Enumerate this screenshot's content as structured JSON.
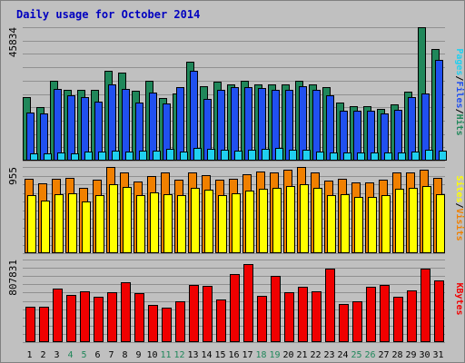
{
  "chart_data": {
    "type": "bar",
    "title": "Daily usage for October 2014",
    "categories": [
      "1",
      "2",
      "3",
      "4",
      "5",
      "6",
      "7",
      "8",
      "9",
      "10",
      "11",
      "12",
      "13",
      "14",
      "15",
      "16",
      "17",
      "18",
      "19",
      "20",
      "21",
      "22",
      "23",
      "24",
      "25",
      "26",
      "27",
      "28",
      "29",
      "30",
      "31"
    ],
    "weekend_days": [
      "4",
      "5",
      "11",
      "12",
      "18",
      "19",
      "25",
      "26"
    ],
    "grid": true,
    "panels": [
      {
        "ymax_label": "45834",
        "ylim": [
          0,
          45834
        ],
        "ylabel": [
          "Pages",
          "/",
          "Files",
          "/",
          "Hits"
        ],
        "series": [
          {
            "name": "Hits",
            "color": "#20875a",
            "values": [
              21800,
              18400,
              27400,
              24300,
              24200,
              24300,
              30800,
              30100,
              24000,
              27300,
              21400,
              23200,
              34100,
              25500,
              27000,
              26300,
              27300,
              26200,
              26200,
              26100,
              27400,
              26200,
              25300,
              20000,
              18600,
              18700,
              17800,
              19300,
              23600,
              45834,
              38200
            ]
          },
          {
            "name": "Files",
            "color": "#2050f0",
            "values": [
              16600,
              16200,
              24600,
              22600,
              21700,
              20300,
              26300,
              24600,
              20100,
              23500,
              19500,
              25300,
              30900,
              21200,
              24300,
              25300,
              25300,
              25000,
              24400,
              24400,
              25500,
              24200,
              22400,
              17300,
              17000,
              17100,
              16300,
              17500,
              21800,
              23000,
              34500
            ]
          },
          {
            "name": "Pages",
            "color": "#20d0f0",
            "values": [
              2500,
              2600,
              2800,
              2500,
              3100,
              3100,
              3300,
              3000,
              3300,
              3300,
              4100,
              3200,
              4400,
              4000,
              3600,
              3400,
              3600,
              4200,
              4300,
              3800,
              3600,
              3200,
              2900,
              2900,
              2900,
              2800,
              2800,
              2700,
              3000,
              3600,
              3400
            ]
          }
        ]
      },
      {
        "ymax_label": "955",
        "ylim": [
          0,
          955
        ],
        "ylabel": [
          "Sites",
          "/",
          "Visits"
        ],
        "series": [
          {
            "name": "Visits",
            "color": "#f08000",
            "values": [
              820,
              770,
              820,
              830,
              720,
              810,
              955,
              890,
              790,
              850,
              890,
              810,
              890,
              860,
              810,
              820,
              870,
              900,
              890,
              920,
              955,
              890,
              800,
              820,
              780,
              780,
              810,
              890,
              890,
              920,
              830
            ]
          },
          {
            "name": "Sites",
            "color": "#ffff00",
            "values": [
              640,
              580,
              650,
              660,
              570,
              640,
              760,
              730,
              640,
              670,
              650,
              640,
              720,
              700,
              640,
              660,
              690,
              710,
              720,
              740,
              765,
              720,
              640,
              650,
              620,
              620,
              640,
              710,
              720,
              740,
              650
            ]
          }
        ]
      },
      {
        "ymax_label": "807831",
        "ylim": [
          0,
          807831
        ],
        "ylabel": [
          "KBytes"
        ],
        "series": [
          {
            "name": "KBytes",
            "color": "#f00000",
            "values": [
              350000,
              350000,
              520000,
              460000,
              500000,
              440000,
              490000,
              590000,
              480000,
              360000,
              340000,
              400000,
              560000,
              550000,
              420000,
              670000,
              765000,
              450000,
              650000,
              490000,
              540000,
              500000,
              720000,
              370000,
              400000,
              540000,
              560000,
              440000,
              510000,
              720000,
              600000
            ]
          }
        ]
      }
    ]
  }
}
